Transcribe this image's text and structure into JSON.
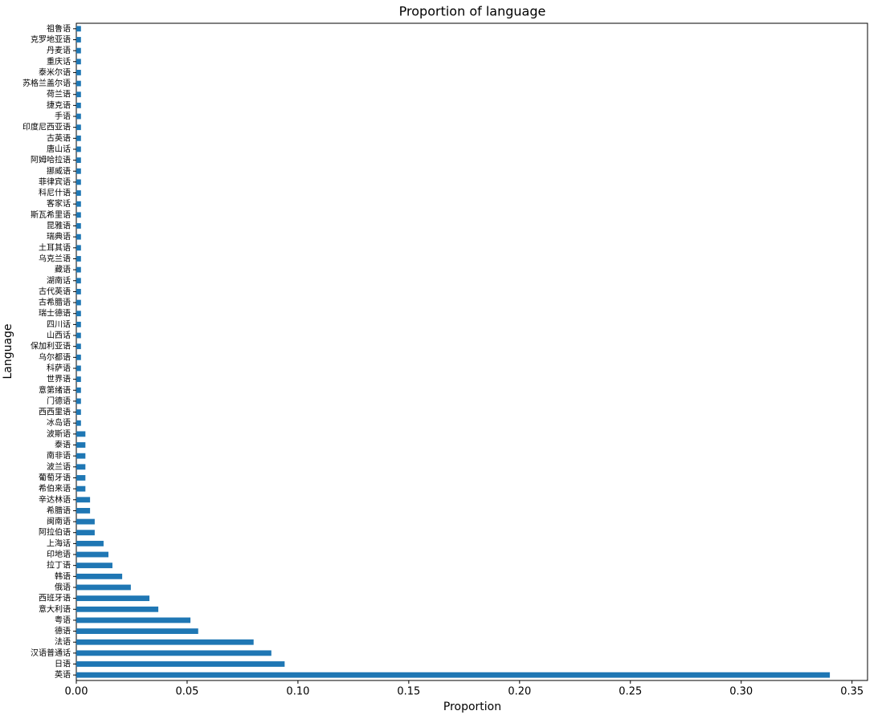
{
  "chart_data": {
    "type": "barh",
    "title": "Proportion of language",
    "xlabel": "Proportion",
    "ylabel": "Language",
    "color": "#1f77b4",
    "categories": [
      "英语",
      "日语",
      "汉语普通话",
      "法语",
      "德语",
      "粤语",
      "意大利语",
      "西班牙语",
      "俄语",
      "韩语",
      "拉丁语",
      "印地语",
      "上海话",
      "阿拉伯语",
      "闽南语",
      "希腊语",
      "辛达林语",
      "希伯来语",
      "葡萄牙语",
      "波兰语",
      "南非语",
      "泰语",
      "波斯语",
      "冰岛语",
      "西西里语",
      "门德语",
      "意第绪语",
      "世界语",
      "科萨语",
      "乌尔都语",
      "保加利亚语",
      "山西话",
      "四川话",
      "瑞士德语",
      "古希腊语",
      "古代英语",
      "湖南话",
      "藏语",
      "乌克兰语",
      "土耳其语",
      "瑞典语",
      "昆雅语",
      "斯瓦希里语",
      "客家话",
      "科尼什语",
      "菲律宾语",
      "挪威语",
      "阿姆哈拉语",
      "唐山话",
      "古英语",
      "印度尼西亚语",
      "手语",
      "捷克语",
      "荷兰语",
      "苏格兰盖尔语",
      "泰米尔语",
      "重庆话",
      "丹麦语",
      "克罗地亚语",
      "祖鲁语"
    ],
    "values": [
      0.34,
      0.094,
      0.088,
      0.08,
      0.055,
      0.0515,
      0.037,
      0.033,
      0.0246,
      0.0207,
      0.0163,
      0.0145,
      0.0123,
      0.0083,
      0.0083,
      0.0062,
      0.0062,
      0.0041,
      0.0041,
      0.0041,
      0.0041,
      0.0041,
      0.0041,
      0.0021,
      0.0021,
      0.0021,
      0.0021,
      0.0021,
      0.0021,
      0.0021,
      0.0021,
      0.0021,
      0.0021,
      0.0021,
      0.0021,
      0.0021,
      0.0021,
      0.0021,
      0.0021,
      0.0021,
      0.0021,
      0.0021,
      0.0021,
      0.0021,
      0.0021,
      0.0021,
      0.0021,
      0.0021,
      0.0021,
      0.0021,
      0.0021,
      0.0021,
      0.0021,
      0.0021,
      0.0021,
      0.0021,
      0.0021,
      0.0021,
      0.0021,
      0.0021
    ],
    "xlim": [
      0,
      0.357
    ],
    "xticks": [
      {
        "value": 0,
        "label": "0.00"
      },
      {
        "value": 0.05,
        "label": "0.05"
      },
      {
        "value": 0.1,
        "label": "0.10"
      },
      {
        "value": 0.15,
        "label": "0.15"
      },
      {
        "value": 0.2,
        "label": "0.20"
      },
      {
        "value": 0.25,
        "label": "0.25"
      },
      {
        "value": 0.3,
        "label": "0.30"
      },
      {
        "value": 0.35,
        "label": "0.35"
      }
    ]
  }
}
